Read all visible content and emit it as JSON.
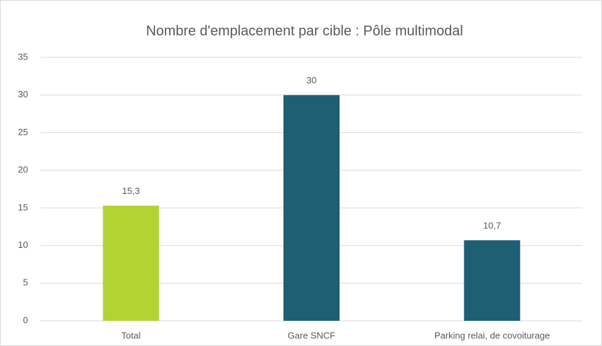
{
  "chart_data": {
    "type": "bar",
    "title": "Nombre d'emplacement par cible : Pôle multimodal",
    "categories": [
      "Total",
      "Gare SNCF",
      "Parking relai, de covoiturage"
    ],
    "values": [
      15.3,
      30,
      10.7
    ],
    "value_labels": [
      "15,3",
      "30",
      "10,7"
    ],
    "colors": [
      "#b3d334",
      "#1f5f73",
      "#1f5f73"
    ],
    "ylim": [
      0,
      35
    ],
    "yticks": [
      0,
      5,
      10,
      15,
      20,
      25,
      30,
      35
    ],
    "grid": true
  }
}
